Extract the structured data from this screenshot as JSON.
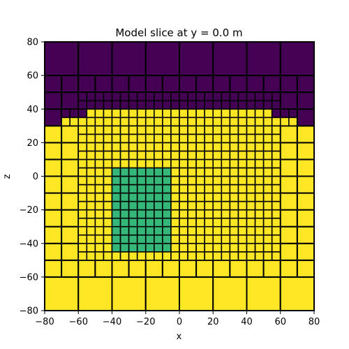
{
  "chart_data": {
    "type": "heatmap",
    "title": "Model slice at y = 0.0 m",
    "xlabel": "x",
    "ylabel": "z",
    "xlim": [
      -80,
      80
    ],
    "ylim": [
      -80,
      80
    ],
    "xticks": [
      -80,
      -60,
      -40,
      -20,
      0,
      20,
      40,
      60,
      80
    ],
    "yticks": [
      -80,
      -60,
      -40,
      -20,
      0,
      20,
      40,
      60,
      80
    ],
    "grid": false,
    "colormap": [
      "#440154",
      "#35b779",
      "#fde725"
    ],
    "air_boundary_z": 30,
    "surface_z_profile": [
      {
        "x_from": -80,
        "x_to": -70,
        "z": 30
      },
      {
        "x_from": -70,
        "x_to": -60,
        "z": 35
      },
      {
        "x_from": -60,
        "x_to": -55,
        "z": 35
      },
      {
        "x_from": -55,
        "x_to": 55,
        "z": 40
      },
      {
        "x_from": 55,
        "x_to": 70,
        "z": 35
      },
      {
        "x_from": 70,
        "x_to": 75,
        "z": 30
      },
      {
        "x_from": 75,
        "x_to": 80,
        "z": 30
      }
    ],
    "regions": [
      {
        "name": "air",
        "value": 0,
        "color": "#440154"
      },
      {
        "name": "background",
        "value": 2,
        "color": "#fde725"
      },
      {
        "name": "anomaly",
        "value": 1,
        "color": "#35b779",
        "x": [
          -40,
          -5
        ],
        "z": [
          -45,
          5
        ]
      }
    ],
    "mesh_cell_sizes": [
      5,
      10,
      20
    ]
  }
}
